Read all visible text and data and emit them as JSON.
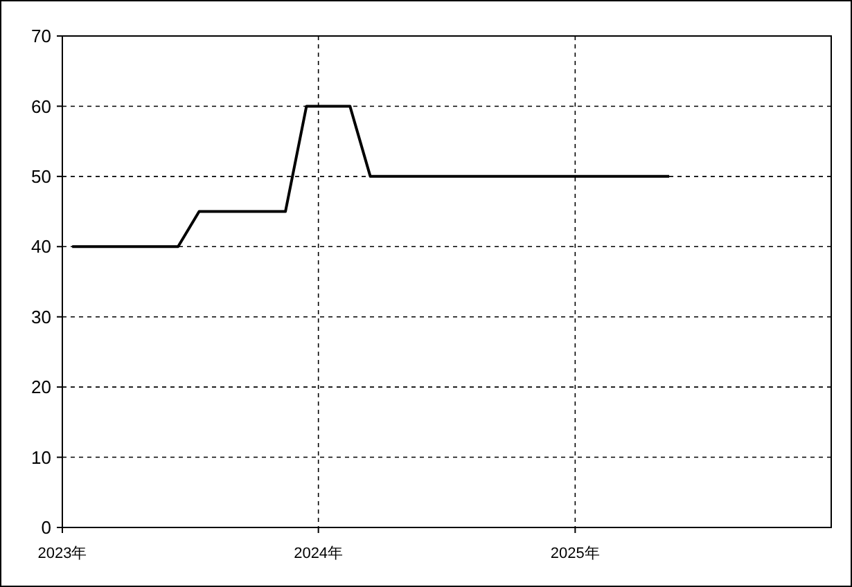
{
  "chart_data": {
    "type": "line",
    "x": [
      "2023-01-15",
      "2023-06-15",
      "2023-07-15",
      "2023-11-15",
      "2023-12-15",
      "2024-02-15",
      "2024-03-15",
      "2025-05-15"
    ],
    "series": [
      {
        "color": "#000000",
        "values": [
          40,
          40,
          45,
          45,
          60,
          60,
          50,
          50
        ]
      }
    ],
    "xlim": [
      "2023-01",
      "2026-01"
    ],
    "xticks": [
      {
        "value": "2023-01",
        "label": "2023年"
      },
      {
        "value": "2024-01",
        "label": "2024年"
      },
      {
        "value": "2025-01",
        "label": "2025年"
      }
    ],
    "ylim": [
      0,
      70
    ],
    "yticks": [
      0,
      10,
      20,
      30,
      40,
      50,
      60,
      70
    ],
    "grid": true,
    "marker": "none",
    "line_style": "solid"
  }
}
